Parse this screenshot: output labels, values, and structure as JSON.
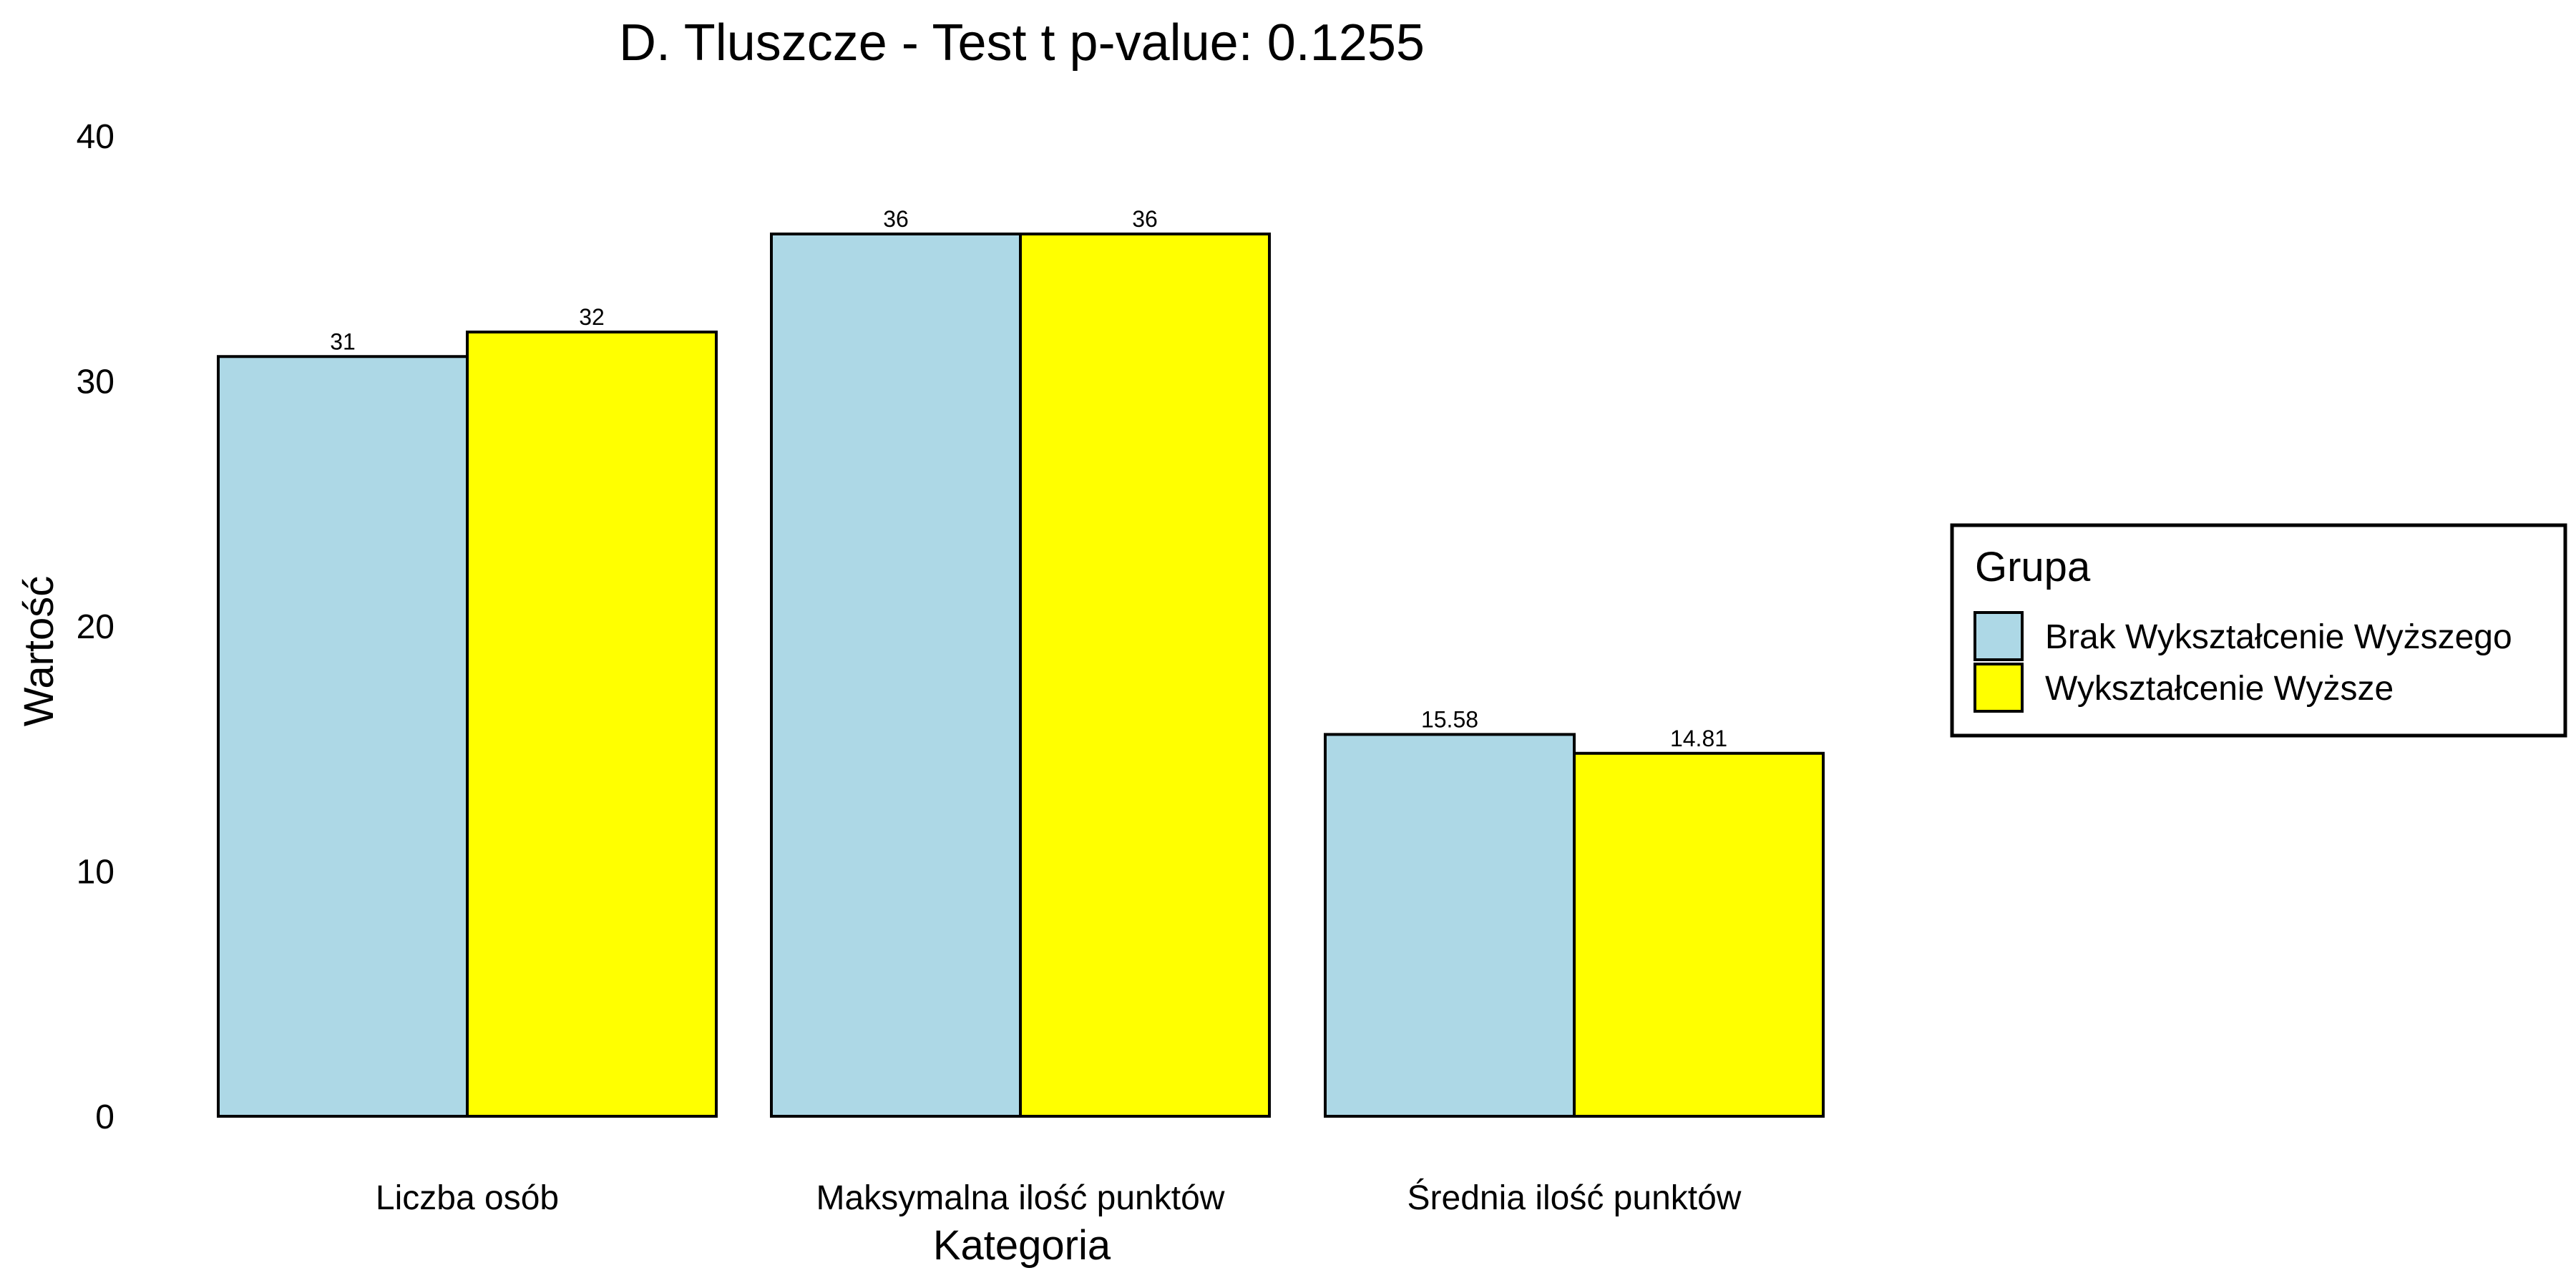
{
  "chart_data": {
    "type": "bar",
    "title": "D. Tluszcze - Test t p-value: 0.1255",
    "xlabel": "Kategoria",
    "ylabel": "Wartość",
    "ylim": [
      0,
      40
    ],
    "yticks": [
      0,
      10,
      20,
      30,
      40
    ],
    "categories": [
      "Liczba osób",
      "Maksymalna ilość punktów",
      "Średnia ilość punktów"
    ],
    "series": [
      {
        "name": "Brak Wykształcenie Wyższego",
        "values": [
          31,
          36,
          15.58
        ],
        "labels": [
          "31",
          "36",
          "15.58"
        ],
        "color": "#ADD8E6"
      },
      {
        "name": "Wykształcenie Wyższe",
        "values": [
          32,
          36,
          14.81
        ],
        "labels": [
          "32",
          "36",
          "14.81"
        ],
        "color": "#FFFF00"
      }
    ],
    "legend": {
      "title": "Grupa",
      "position": "right"
    },
    "grid": false
  }
}
